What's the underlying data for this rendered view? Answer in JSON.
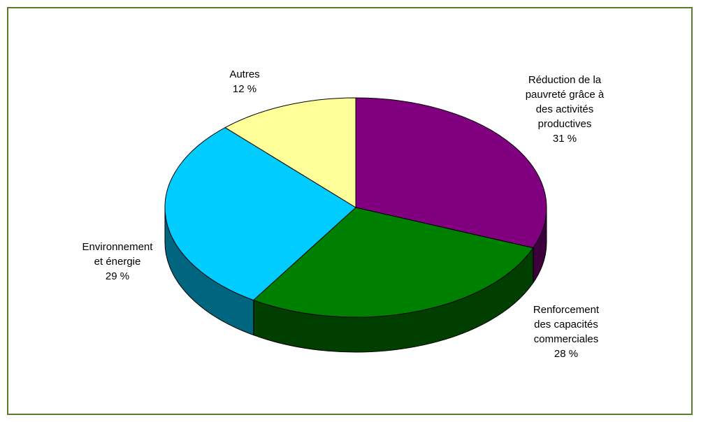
{
  "chart_data": {
    "type": "pie",
    "style": "3d",
    "title": "",
    "slices": [
      {
        "label_lines": [
          "Réduction de la",
          "pauvreté grâce à",
          "des activités",
          "productives"
        ],
        "value": 31,
        "value_label": "31 %",
        "color": "#800080",
        "side_color": "#3d003d"
      },
      {
        "label_lines": [
          "Renforcement",
          "des capacités",
          "commerciales"
        ],
        "value": 28,
        "value_label": "28 %",
        "color": "#008000",
        "side_color": "#003f00"
      },
      {
        "label_lines": [
          "Environnement",
          "et énergie"
        ],
        "value": 29,
        "value_label": "29 %",
        "color": "#00ccff",
        "side_color": "#006680"
      },
      {
        "label_lines": [
          "Autres"
        ],
        "value": 12,
        "value_label": "12 %",
        "color": "#ffff99",
        "side_color": "#808050"
      }
    ]
  },
  "frame_border_color": "#5b7a2a"
}
